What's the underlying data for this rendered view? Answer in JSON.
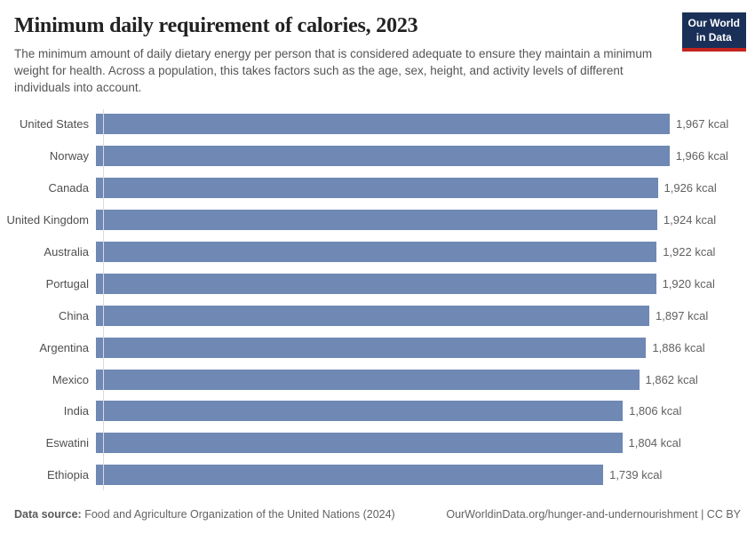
{
  "header": {
    "title": "Minimum daily requirement of calories, 2023",
    "subtitle": "The minimum amount of daily dietary energy per person that is considered adequate to ensure they maintain a minimum weight for health. Across a population, this takes factors such as the age, sex, height, and activity levels of different individuals into account.",
    "logo": {
      "line1": "Our World",
      "line2": "in Data"
    }
  },
  "chart_data": {
    "type": "bar",
    "orientation": "horizontal",
    "title": "Minimum daily requirement of calories, 2023",
    "unit": "kcal",
    "categories": [
      "United States",
      "Norway",
      "Canada",
      "United Kingdom",
      "Australia",
      "Portugal",
      "China",
      "Argentina",
      "Mexico",
      "India",
      "Eswatini",
      "Ethiopia"
    ],
    "values": [
      1967,
      1966,
      1926,
      1924,
      1922,
      1920,
      1897,
      1886,
      1862,
      1806,
      1804,
      1739
    ],
    "value_labels": [
      "1,967 kcal",
      "1,966 kcal",
      "1,926 kcal",
      "1,924 kcal",
      "1,922 kcal",
      "1,920 kcal",
      "1,897 kcal",
      "1,886 kcal",
      "1,862 kcal",
      "1,806 kcal",
      "1,804 kcal",
      "1,739 kcal"
    ],
    "xlim": [
      0,
      1967
    ],
    "grid": false,
    "legend": false,
    "bar_color": "#6f88b4",
    "axis_color": "#dadada"
  },
  "footer": {
    "source_label": "Data source:",
    "source_text": " Food and Agriculture Organization of the United Nations (2024)",
    "link_text": "OurWorldinData.org/hunger-and-undernourishment | CC BY"
  }
}
